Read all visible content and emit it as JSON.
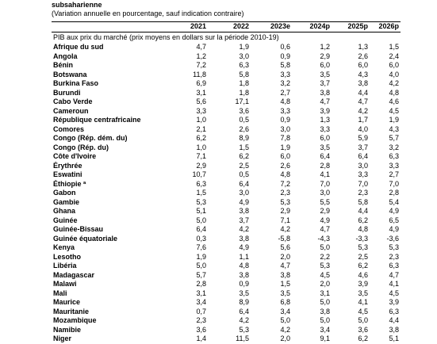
{
  "header": {
    "title": "subsaharienne",
    "subtitle": "(Variation annuelle en pourcentage, sauf indication contraire)"
  },
  "table": {
    "columns": [
      "2021",
      "2022",
      "2023e",
      "2024p",
      "2025p",
      "2026p"
    ],
    "subheader": "PIB aux prix du marché (prix moyens en dollars sur la période 2010-19)",
    "rows": [
      [
        "Afrique du sud",
        "4,7",
        "1,9",
        "0,6",
        "1,2",
        "1,3",
        "1,5"
      ],
      [
        "Angola",
        "1,2",
        "3,0",
        "0,9",
        "2,9",
        "2,6",
        "2,4"
      ],
      [
        "Bénin",
        "7,2",
        "6,3",
        "5,8",
        "6,0",
        "6,0",
        "6,0"
      ],
      [
        "Botswana",
        "11,8",
        "5,8",
        "3,3",
        "3,5",
        "4,3",
        "4,0"
      ],
      [
        "Burkina Faso",
        "6,9",
        "1,8",
        "3,2",
        "3,7",
        "3,8",
        "4,2"
      ],
      [
        "Burundi",
        "3,1",
        "1,8",
        "2,7",
        "3,8",
        "4,4",
        "4,8"
      ],
      [
        "Cabo Verde",
        "5,6",
        "17,1",
        "4,8",
        "4,7",
        "4,7",
        "4,6"
      ],
      [
        "Cameroun",
        "3,3",
        "3,6",
        "3,3",
        "3,9",
        "4,2",
        "4,5"
      ],
      [
        "République centrafricaine",
        "1,0",
        "0,5",
        "0,9",
        "1,3",
        "1,7",
        "1,9"
      ],
      [
        "Comores",
        "2,1",
        "2,6",
        "3,0",
        "3,3",
        "4,0",
        "4,3"
      ],
      [
        "Congo (Rép. dém. du)",
        "6,2",
        "8,9",
        "7,8",
        "6,0",
        "5,9",
        "5,7"
      ],
      [
        "Congo (Rép. du)",
        "1,0",
        "1,5",
        "1,9",
        "3,5",
        "3,7",
        "3,2"
      ],
      [
        "Côte d'Ivoire",
        "7,1",
        "6,2",
        "6,0",
        "6,4",
        "6,4",
        "6,3"
      ],
      [
        "Érythrée",
        "2,9",
        "2,5",
        "2,6",
        "2,8",
        "3,0",
        "3,3"
      ],
      [
        "Eswatini",
        "10,7",
        "0,5",
        "4,8",
        "4,1",
        "3,3",
        "2,7"
      ],
      [
        "Éthiopie ª",
        "6,3",
        "6,4",
        "7,2",
        "7,0",
        "7,0",
        "7,0"
      ],
      [
        "Gabon",
        "1,5",
        "3,0",
        "2,3",
        "3,0",
        "2,3",
        "2,8"
      ],
      [
        "Gambie",
        "5,3",
        "4,9",
        "5,3",
        "5,5",
        "5,8",
        "5,4"
      ],
      [
        "Ghana",
        "5,1",
        "3,8",
        "2,9",
        "2,9",
        "4,4",
        "4,9"
      ],
      [
        "Guinée",
        "5,0",
        "3,7",
        "7,1",
        "4,9",
        "6,2",
        "6,5"
      ],
      [
        "Guinée-Bissau",
        "6,4",
        "4,2",
        "4,2",
        "4,7",
        "4,8",
        "4,9"
      ],
      [
        "Guinée équatoriale",
        "0,3",
        "3,8",
        "-5,8",
        "-4,3",
        "-3,3",
        "-3,6"
      ],
      [
        "Kenya",
        "7,6",
        "4,9",
        "5,6",
        "5,0",
        "5,3",
        "5,3"
      ],
      [
        "Lesotho",
        "1,9",
        "1,1",
        "2,0",
        "2,2",
        "2,5",
        "2,3"
      ],
      [
        "Libéria",
        "5,0",
        "4,8",
        "4,7",
        "5,3",
        "6,2",
        "6,3"
      ],
      [
        "Madagascar",
        "5,7",
        "3,8",
        "3,8",
        "4,5",
        "4,6",
        "4,7"
      ],
      [
        "Malawi",
        "2,8",
        "0,9",
        "1,5",
        "2,0",
        "3,9",
        "4,1"
      ],
      [
        "Mali",
        "3,1",
        "3,5",
        "3,5",
        "3,1",
        "3,5",
        "4,5"
      ],
      [
        "Maurice",
        "3,4",
        "8,9",
        "6,8",
        "5,0",
        "4,1",
        "3,9"
      ],
      [
        "Mauritanie",
        "0,7",
        "6,4",
        "3,4",
        "3,8",
        "4,5",
        "6,3"
      ],
      [
        "Mozambique",
        "2,3",
        "4,2",
        "5,0",
        "5,0",
        "5,0",
        "4,4"
      ],
      [
        "Namibie",
        "3,6",
        "5,3",
        "4,2",
        "3,4",
        "3,6",
        "3,8"
      ],
      [
        "Niger",
        "1,4",
        "11,5",
        "2,0",
        "9,1",
        "6,2",
        "5,1"
      ]
    ]
  }
}
